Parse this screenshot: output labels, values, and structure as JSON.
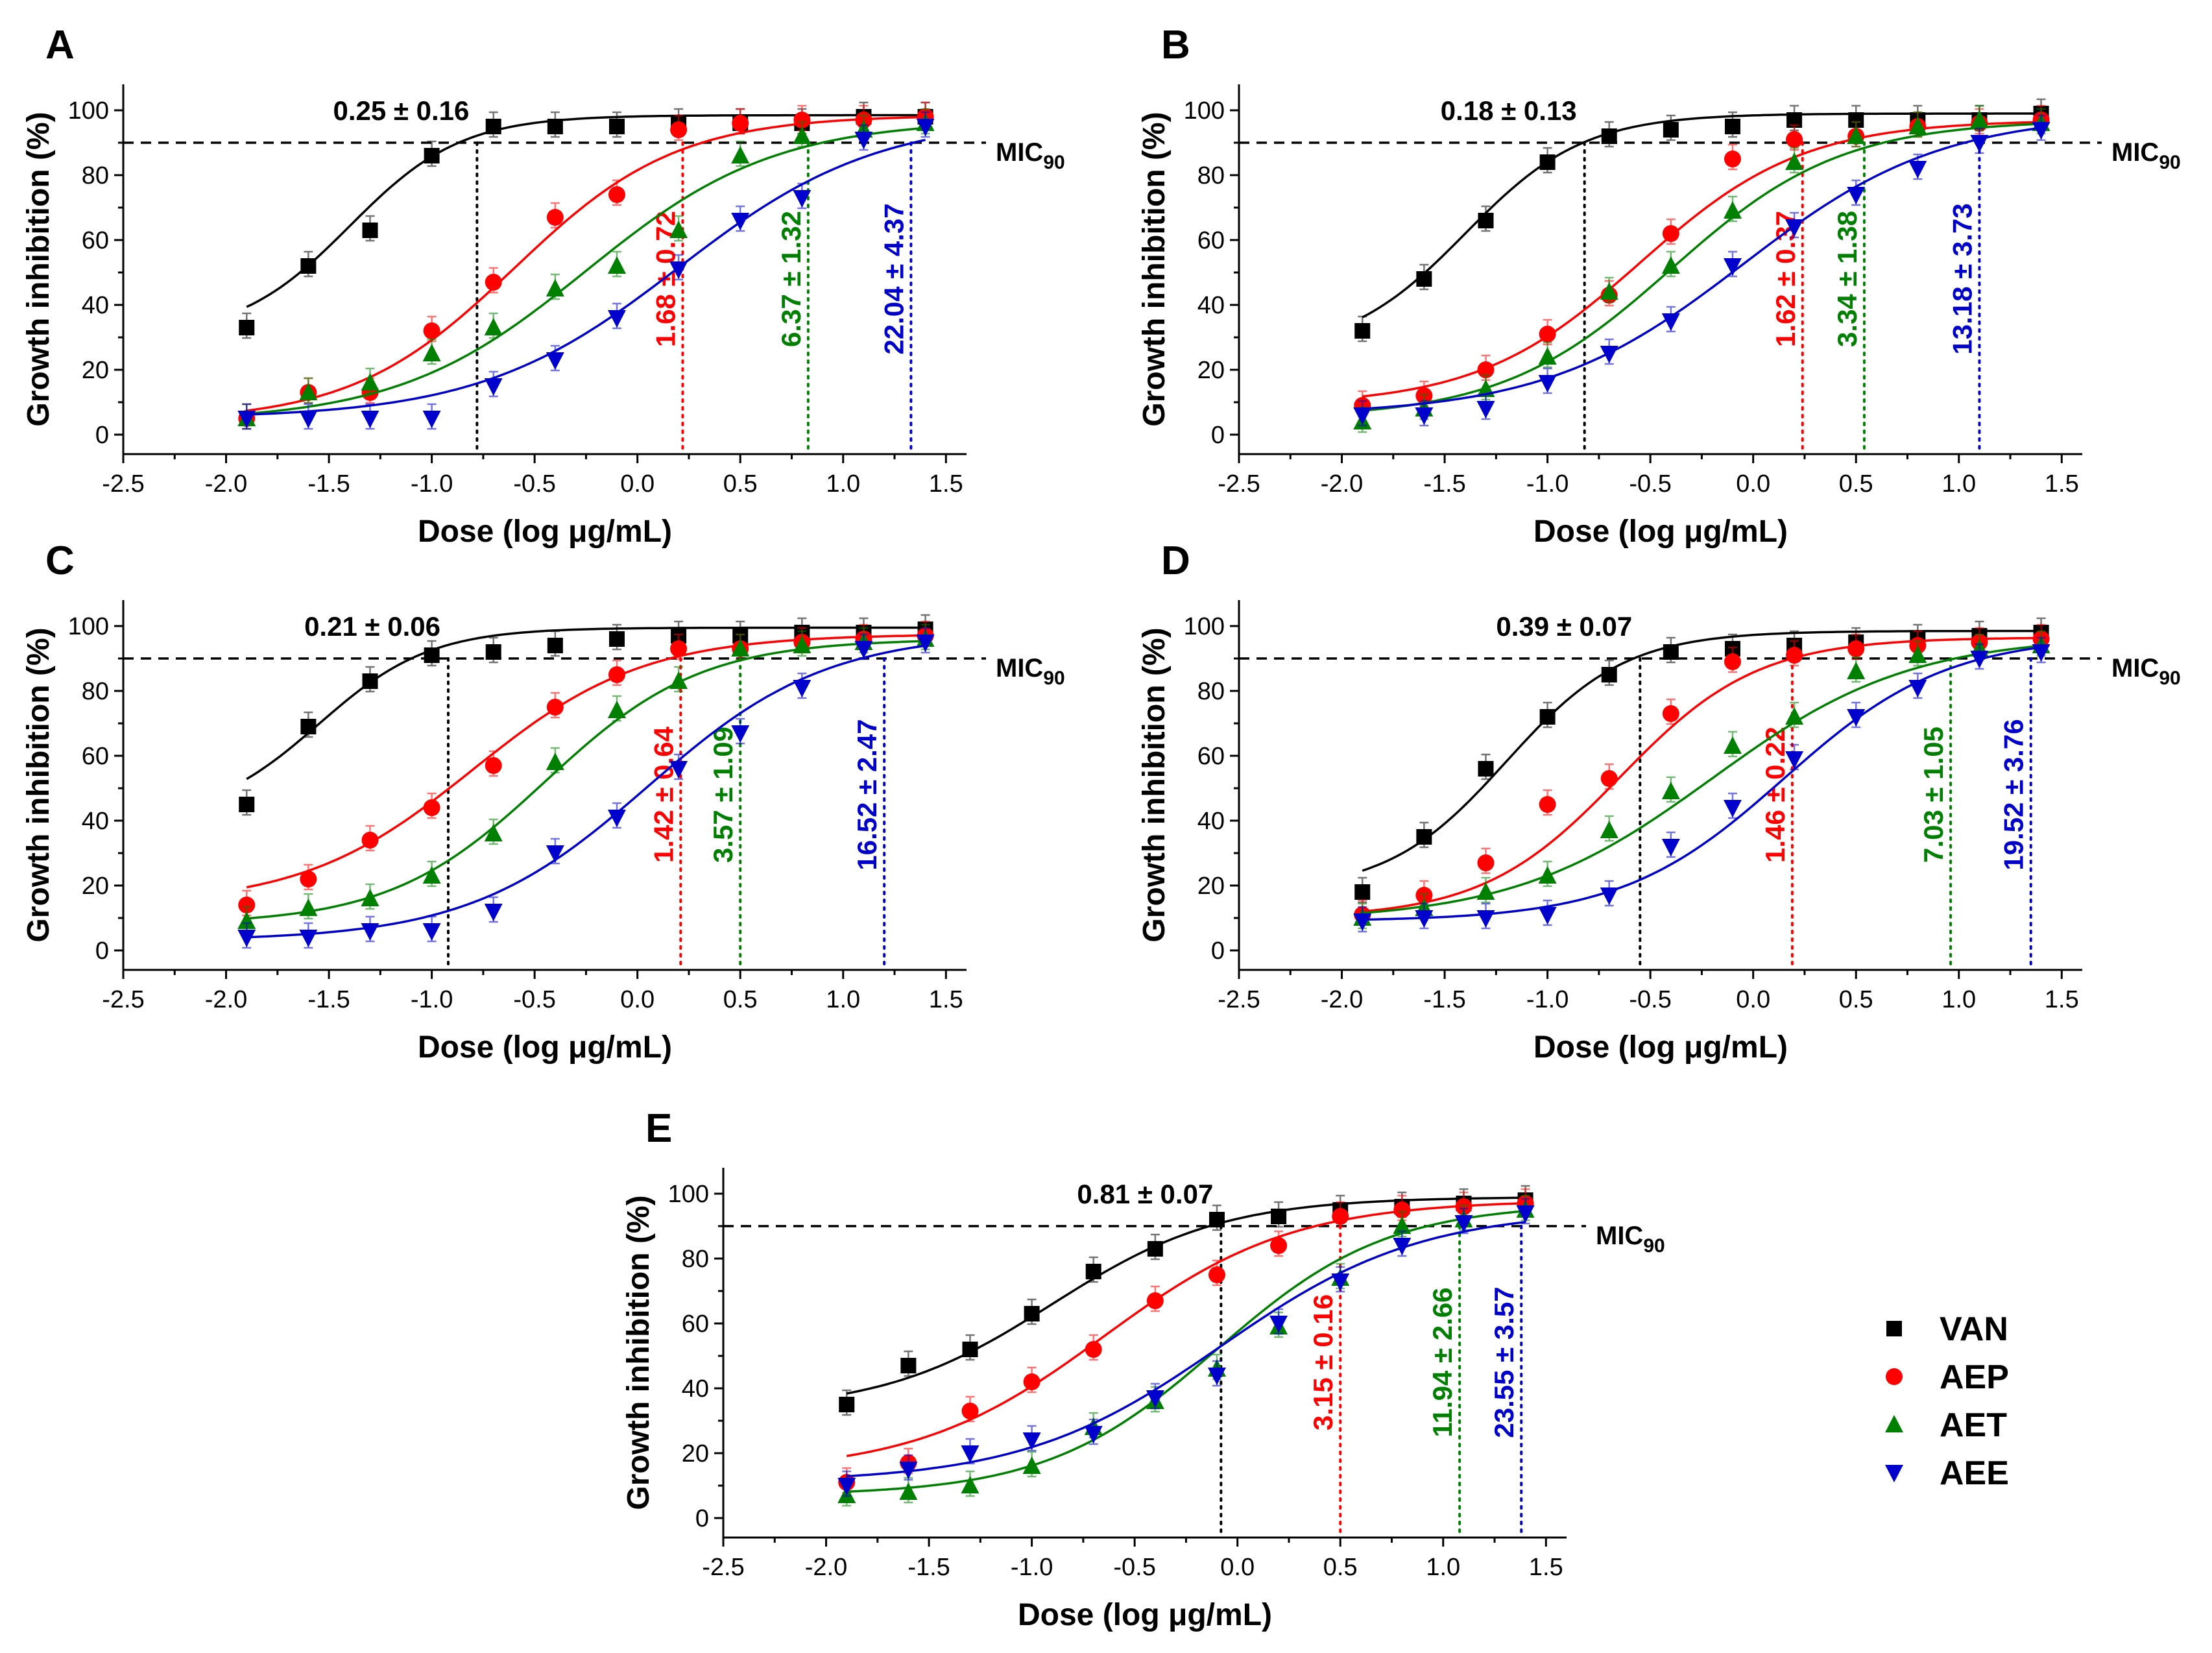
{
  "chart_data": {
    "type": "scatter",
    "figure_layout": "five dose-response panels A-E with sigmoid fits",
    "series_styles": [
      {
        "name": "VAN",
        "color": "#000000",
        "marker": "square"
      },
      {
        "name": "AEP",
        "color": "#FF0000",
        "marker": "circle"
      },
      {
        "name": "AET",
        "color": "#008000",
        "marker": "triangle-up"
      },
      {
        "name": "AEE",
        "color": "#0000CC",
        "marker": "triangle-down"
      }
    ],
    "legend_position": "bottom-right",
    "mic_label_main": "MIC",
    "mic_label_sub": "90",
    "panels": [
      {
        "letter": "A",
        "xlabel": "Dose (log μg/mL)",
        "ylabel": "Growth inhibition (%)",
        "xlim": [
          -2.5,
          1.6
        ],
        "ylim": [
          -6,
          108
        ],
        "xticks": [
          -2.5,
          -2.0,
          -1.5,
          -1.0,
          -0.5,
          0.0,
          0.5,
          1.0,
          1.5
        ],
        "yticks": [
          0,
          20,
          40,
          60,
          80,
          100
        ],
        "mic90": 90,
        "x": [
          -1.9,
          -1.6,
          -1.3,
          -1.0,
          -0.7,
          -0.4,
          -0.1,
          0.2,
          0.5,
          0.8,
          1.1,
          1.4
        ],
        "series": [
          {
            "name": "VAN",
            "values": [
              33,
              52,
              63,
              86,
              95,
              95,
              95,
              96,
              96,
              96,
              98,
              98
            ],
            "fit": {
              "bottom": 30,
              "top": 98.5,
              "logec50": -1.4,
              "hill": 1.6
            }
          },
          {
            "name": "AEP",
            "values": [
              5,
              13,
              13,
              32,
              47,
              67,
              74,
              94,
              96,
              97,
              97,
              98
            ],
            "fit": {
              "bottom": 4,
              "top": 98.5,
              "logec50": -0.6,
              "hill": 1.1
            }
          },
          {
            "name": "AET",
            "values": [
              5,
              13,
              16,
              25,
              33,
              45,
              52,
              63,
              86,
              92,
              94,
              96
            ],
            "fit": {
              "bottom": 4,
              "top": 97,
              "logec50": -0.25,
              "hill": 0.95
            }
          },
          {
            "name": "AEE",
            "values": [
              5,
              5,
              5,
              5,
              15,
              23,
              36,
              51,
              66,
              73,
              91,
              95
            ],
            "fit": {
              "bottom": 5,
              "top": 98,
              "logec50": 0.2,
              "hill": 0.9
            }
          }
        ],
        "mic_values": [
          {
            "series": "VAN",
            "x": -0.78,
            "text": "0.25 ± 0.16"
          },
          {
            "series": "AEP",
            "x": 0.22,
            "text": "1.68 ± 0.72"
          },
          {
            "series": "AET",
            "x": 0.83,
            "text": "6.37 ± 1.32"
          },
          {
            "series": "AEE",
            "x": 1.33,
            "text": "22.04 ± 4.37"
          }
        ]
      },
      {
        "letter": "B",
        "xlabel": "Dose (log μg/mL)",
        "ylabel": "Growth inhibition (%)",
        "xlim": [
          -2.5,
          1.6
        ],
        "ylim": [
          -6,
          108
        ],
        "xticks": [
          -2.5,
          -2.0,
          -1.5,
          -1.0,
          -0.5,
          0.0,
          0.5,
          1.0,
          1.5
        ],
        "yticks": [
          0,
          20,
          40,
          60,
          80,
          100
        ],
        "mic90": 90,
        "x": [
          -1.9,
          -1.6,
          -1.3,
          -1.0,
          -0.7,
          -0.4,
          -0.1,
          0.2,
          0.5,
          0.8,
          1.1,
          1.4
        ],
        "series": [
          {
            "name": "VAN",
            "values": [
              32,
              48,
              66,
              84,
              92,
              94,
              95,
              97,
              97,
              97,
              97,
              99
            ],
            "fit": {
              "bottom": 25,
              "top": 99,
              "logec50": -1.4,
              "hill": 1.5
            }
          },
          {
            "name": "AEP",
            "values": [
              9,
              12,
              20,
              31,
              43,
              62,
              85,
              91,
              92,
              95,
              96,
              97
            ],
            "fit": {
              "bottom": 9,
              "top": 97,
              "logec50": -0.55,
              "hill": 1.1
            }
          },
          {
            "name": "AET",
            "values": [
              4,
              8,
              14,
              24,
              44,
              52,
              69,
              84,
              92,
              95,
              97,
              96
            ],
            "fit": {
              "bottom": 5,
              "top": 97,
              "logec50": -0.4,
              "hill": 1.05
            }
          },
          {
            "name": "AEE",
            "values": [
              6,
              6,
              8,
              16,
              25,
              35,
              52,
              64,
              74,
              82,
              90,
              94
            ],
            "fit": {
              "bottom": 6,
              "top": 99,
              "logec50": -0.05,
              "hill": 0.9
            }
          }
        ],
        "mic_values": [
          {
            "series": "VAN",
            "x": -0.82,
            "text": "0.18 ± 0.13"
          },
          {
            "series": "AEP",
            "x": 0.24,
            "text": "1.62 ± 0.37"
          },
          {
            "series": "AET",
            "x": 0.54,
            "text": "3.34 ± 1.38"
          },
          {
            "series": "AEE",
            "x": 1.1,
            "text": "13.18 ± 3.73"
          }
        ]
      },
      {
        "letter": "C",
        "xlabel": "Dose (log μg/mL)",
        "ylabel": "Growth inhibition (%)",
        "xlim": [
          -2.5,
          1.6
        ],
        "ylim": [
          -6,
          108
        ],
        "xticks": [
          -2.5,
          -2.0,
          -1.5,
          -1.0,
          -0.5,
          0.0,
          0.5,
          1.0,
          1.5
        ],
        "yticks": [
          0,
          20,
          40,
          60,
          80,
          100
        ],
        "mic90": 90,
        "x": [
          -1.9,
          -1.6,
          -1.3,
          -1.0,
          -0.7,
          -0.4,
          -0.1,
          0.2,
          0.5,
          0.8,
          1.1,
          1.4
        ],
        "series": [
          {
            "name": "VAN",
            "values": [
              45,
              69,
              83,
              91,
              92,
              94,
              96,
              97,
              97,
              98,
              98,
              99
            ],
            "fit": {
              "bottom": 40,
              "top": 99.5,
              "logec50": -1.55,
              "hill": 1.6
            }
          },
          {
            "name": "AEP",
            "values": [
              14,
              22,
              34,
              44,
              57,
              75,
              85,
              93,
              93,
              95,
              96,
              97
            ],
            "fit": {
              "bottom": 14,
              "top": 97.5,
              "logec50": -0.8,
              "hill": 1.05
            }
          },
          {
            "name": "AET",
            "values": [
              9,
              13,
              16,
              23,
              36,
              58,
              74,
              83,
              93,
              94,
              95,
              96
            ],
            "fit": {
              "bottom": 8,
              "top": 96,
              "logec50": -0.45,
              "hill": 1.15
            }
          },
          {
            "name": "AEE",
            "values": [
              4,
              4,
              6,
              6,
              12,
              30,
              41,
              56,
              67,
              81,
              93,
              95
            ],
            "fit": {
              "bottom": 3,
              "top": 98,
              "logec50": 0.05,
              "hill": 1.0
            }
          }
        ],
        "mic_values": [
          {
            "series": "VAN",
            "x": -0.92,
            "text": "0.21 ± 0.06"
          },
          {
            "series": "AEP",
            "x": 0.21,
            "text": "1.42 ± 0.64"
          },
          {
            "series": "AET",
            "x": 0.5,
            "text": "3.57 ± 1.09"
          },
          {
            "series": "AEE",
            "x": 1.2,
            "text": "16.52 ± 2.47"
          }
        ]
      },
      {
        "letter": "D",
        "xlabel": "Dose (log μg/mL)",
        "ylabel": "Growth inhibition (%)",
        "xlim": [
          -2.5,
          1.6
        ],
        "ylim": [
          -6,
          108
        ],
        "xticks": [
          -2.5,
          -2.0,
          -1.5,
          -1.0,
          -0.5,
          0.0,
          0.5,
          1.0,
          1.5
        ],
        "yticks": [
          0,
          20,
          40,
          60,
          80,
          100
        ],
        "mic90": 90,
        "x": [
          -1.9,
          -1.6,
          -1.3,
          -1.0,
          -0.7,
          -0.4,
          -0.1,
          0.2,
          0.5,
          0.8,
          1.1,
          1.4
        ],
        "series": [
          {
            "name": "VAN",
            "values": [
              18,
              35,
              56,
              72,
              85,
              92,
              93,
              94,
              95,
              96,
              97,
              98
            ],
            "fit": {
              "bottom": 18,
              "top": 98.5,
              "logec50": -1.2,
              "hill": 1.5
            }
          },
          {
            "name": "AEP",
            "values": [
              11,
              17,
              27,
              45,
              53,
              73,
              89,
              91,
              93,
              94,
              95,
              96
            ],
            "fit": {
              "bottom": 10,
              "top": 96.5,
              "logec50": -0.65,
              "hill": 1.3
            }
          },
          {
            "name": "AET",
            "values": [
              10,
              13,
              18,
              23,
              37,
              49,
              63,
              72,
              86,
              91,
              93,
              94
            ],
            "fit": {
              "bottom": 9,
              "top": 97,
              "logec50": -0.2,
              "hill": 0.9
            }
          },
          {
            "name": "AEE",
            "values": [
              9,
              10,
              10,
              11,
              17,
              32,
              44,
              59,
              72,
              81,
              90,
              92
            ],
            "fit": {
              "bottom": 9,
              "top": 97,
              "logec50": 0.15,
              "hill": 1.1
            }
          }
        ],
        "mic_values": [
          {
            "series": "VAN",
            "x": -0.55,
            "text": "0.39 ± 0.07"
          },
          {
            "series": "AEP",
            "x": 0.19,
            "text": "1.46 ± 0.22"
          },
          {
            "series": "AET",
            "x": 0.96,
            "text": "7.03 ± 1.05"
          },
          {
            "series": "AEE",
            "x": 1.35,
            "text": "19.52 ± 3.76"
          }
        ]
      },
      {
        "letter": "E",
        "xlabel": "Dose (log μg/mL)",
        "ylabel": "Growth inhibition (%)",
        "xlim": [
          -2.5,
          1.6
        ],
        "ylim": [
          -6,
          108
        ],
        "xticks": [
          -2.5,
          -2.0,
          -1.5,
          -1.0,
          -0.5,
          0.0,
          0.5,
          1.0,
          1.5
        ],
        "yticks": [
          0,
          20,
          40,
          60,
          80,
          100
        ],
        "mic90": 90,
        "x": [
          -1.9,
          -1.6,
          -1.3,
          -1.0,
          -0.7,
          -0.4,
          -0.1,
          0.2,
          0.5,
          0.8,
          1.1,
          1.4
        ],
        "series": [
          {
            "name": "VAN",
            "values": [
              35,
              47,
              52,
              63,
              76,
              83,
              92,
              93,
              95,
              96,
              97,
              98
            ],
            "fit": {
              "bottom": 33,
              "top": 99,
              "logec50": -0.9,
              "hill": 1.05
            }
          },
          {
            "name": "AEP",
            "values": [
              11,
              17,
              33,
              42,
              52,
              67,
              75,
              84,
              93,
              95,
              96,
              97
            ],
            "fit": {
              "bottom": 14,
              "top": 98,
              "logec50": -0.65,
              "hill": 0.95
            }
          },
          {
            "name": "AET",
            "values": [
              7,
              8,
              10,
              16,
              28,
              36,
              46,
              59,
              74,
              90,
              92,
              95
            ],
            "fit": {
              "bottom": 7,
              "top": 97,
              "logec50": -0.1,
              "hill": 1.05
            }
          },
          {
            "name": "AEE",
            "values": [
              10,
              15,
              20,
              24,
              26,
              37,
              44,
              60,
              73,
              84,
              91,
              94
            ],
            "fit": {
              "bottom": 11,
              "top": 95,
              "logec50": -0.08,
              "hill": 0.9
            }
          }
        ],
        "mic_values": [
          {
            "series": "VAN",
            "x": -0.08,
            "text": "0.81 ± 0.07"
          },
          {
            "series": "AEP",
            "x": 0.5,
            "text": "3.15 ± 0.16"
          },
          {
            "series": "AET",
            "x": 1.08,
            "text": "11.94 ± 2.66"
          },
          {
            "series": "AEE",
            "x": 1.38,
            "text": "23.55 ± 3.57"
          }
        ]
      }
    ]
  }
}
